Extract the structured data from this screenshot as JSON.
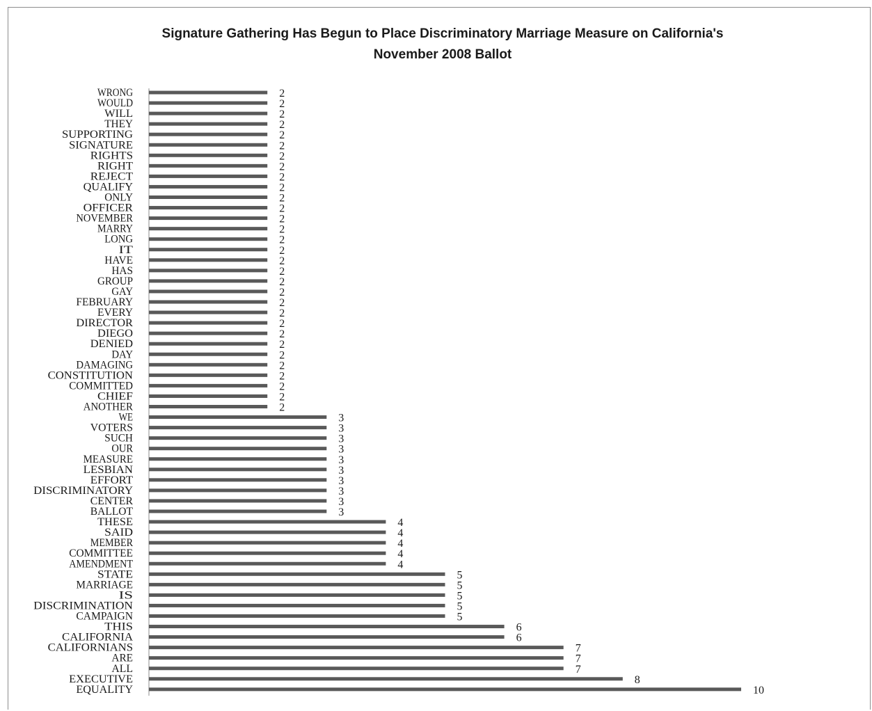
{
  "chart_data": {
    "type": "bar",
    "orientation": "horizontal",
    "title": "Signature Gathering Has Begun to Place Discriminatory Marriage Measure on California's November 2008 Ballot",
    "xlabel": "",
    "ylabel": "",
    "xlim": [
      0,
      10
    ],
    "grid": false,
    "legend": "none",
    "bar_color": "#595959",
    "categories": [
      "WRONG",
      "WOULD",
      "WILL",
      "THEY",
      "SUPPORTING",
      "SIGNATURE",
      "RIGHTS",
      "RIGHT",
      "REJECT",
      "QUALIFY",
      "ONLY",
      "OFFICER",
      "NOVEMBER",
      "MARRY",
      "LONG",
      "IT",
      "HAVE",
      "HAS",
      "GROUP",
      "GAY",
      "FEBRUARY",
      "EVERY",
      "DIRECTOR",
      "DIEGO",
      "DENIED",
      "DAY",
      "DAMAGING",
      "CONSTITUTION",
      "COMMITTED",
      "CHIEF",
      "ANOTHER",
      "WE",
      "VOTERS",
      "SUCH",
      "OUR",
      "MEASURE",
      "LESBIAN",
      "EFFORT",
      "DISCRIMINATORY",
      "CENTER",
      "BALLOT",
      "THESE",
      "SAID",
      "MEMBER",
      "COMMITTEE",
      "AMENDMENT",
      "STATE",
      "MARRIAGE",
      "IS",
      "DISCRIMINATION",
      "CAMPAIGN",
      "THIS",
      "CALIFORNIA",
      "CALIFORNIANS",
      "ARE",
      "ALL",
      "EXECUTIVE",
      "EQUALITY"
    ],
    "values": [
      2,
      2,
      2,
      2,
      2,
      2,
      2,
      2,
      2,
      2,
      2,
      2,
      2,
      2,
      2,
      2,
      2,
      2,
      2,
      2,
      2,
      2,
      2,
      2,
      2,
      2,
      2,
      2,
      2,
      2,
      2,
      3,
      3,
      3,
      3,
      3,
      3,
      3,
      3,
      3,
      3,
      4,
      4,
      4,
      4,
      4,
      5,
      5,
      5,
      5,
      5,
      6,
      6,
      7,
      7,
      7,
      8,
      10
    ]
  }
}
